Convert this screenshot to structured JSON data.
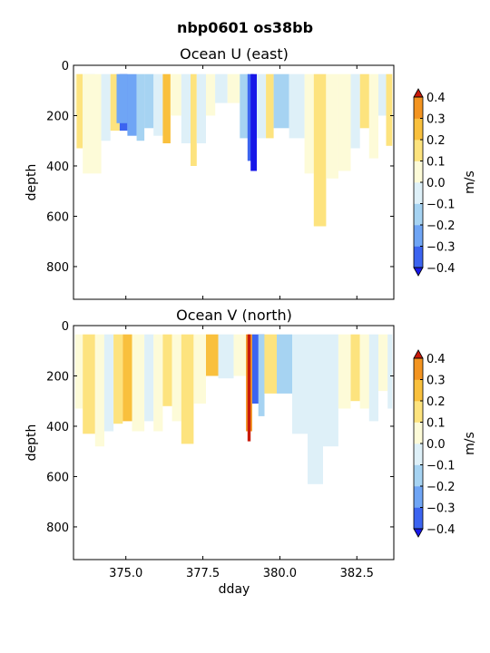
{
  "figure": {
    "title": "nbp0601 os38bb"
  },
  "colorbar": {
    "label": "m/s",
    "levels": [
      -0.4,
      -0.3,
      -0.2,
      -0.1,
      0.0,
      0.1,
      0.2,
      0.3,
      0.4
    ],
    "tick_labels": [
      "−0.4",
      "−0.3",
      "−0.2",
      "−0.1",
      "0.0",
      "0.1",
      "0.2",
      "0.3",
      "0.4"
    ],
    "colors": [
      "#1717e8",
      "#3c64f0",
      "#6fa5f5",
      "#a6d3f2",
      "#def0f8",
      "#fdfbd8",
      "#fde37e",
      "#f9c03d",
      "#f39420",
      "#e8621a",
      "#c91a0a"
    ]
  },
  "chart_data": [
    {
      "type": "heatmap",
      "title": "Ocean U (east)",
      "xlabel": "",
      "ylabel": "depth",
      "xlim": [
        373.3,
        383.7
      ],
      "ylim": [
        930,
        0
      ],
      "x_ticks": [
        375.0,
        377.5,
        380.0,
        382.5
      ],
      "x_tick_labels": [],
      "y_ticks": [
        0,
        200,
        400,
        600,
        800
      ],
      "y_tick_labels": [
        "0",
        "200",
        "400",
        "600",
        "800"
      ],
      "top_depth": 35,
      "segments": [
        {
          "x0": 373.35,
          "x1": 373.6,
          "ymax": 200,
          "v": 0.05
        },
        {
          "x0": 373.4,
          "x1": 373.6,
          "ymax": 330,
          "v": 0.15
        },
        {
          "x0": 373.6,
          "x1": 374.0,
          "ymax": 320,
          "v": -0.05
        },
        {
          "x0": 373.6,
          "x1": 374.2,
          "ymax": 430,
          "v": 0.05
        },
        {
          "x0": 374.2,
          "x1": 374.5,
          "ymax": 300,
          "v": -0.05
        },
        {
          "x0": 374.5,
          "x1": 374.8,
          "ymax": 260,
          "v": 0.15
        },
        {
          "x0": 374.8,
          "x1": 375.05,
          "ymax": 260,
          "v": -0.35
        },
        {
          "x0": 374.7,
          "x1": 375.05,
          "ymax": 230,
          "v": -0.3
        },
        {
          "x0": 375.05,
          "x1": 375.35,
          "ymax": 280,
          "v": -0.25
        },
        {
          "x0": 375.35,
          "x1": 375.6,
          "ymax": 300,
          "v": -0.15
        },
        {
          "x0": 375.6,
          "x1": 375.9,
          "ymax": 250,
          "v": -0.15
        },
        {
          "x0": 375.9,
          "x1": 376.2,
          "ymax": 280,
          "v": -0.05
        },
        {
          "x0": 376.2,
          "x1": 376.45,
          "ymax": 310,
          "v": 0.25
        },
        {
          "x0": 376.45,
          "x1": 376.8,
          "ymax": 200,
          "v": 0.05
        },
        {
          "x0": 376.8,
          "x1": 377.1,
          "ymax": 310,
          "v": -0.05
        },
        {
          "x0": 377.1,
          "x1": 377.3,
          "ymax": 400,
          "v": 0.15
        },
        {
          "x0": 377.3,
          "x1": 377.6,
          "ymax": 310,
          "v": -0.05
        },
        {
          "x0": 377.6,
          "x1": 377.9,
          "ymax": 200,
          "v": 0.05
        },
        {
          "x0": 377.9,
          "x1": 378.3,
          "ymax": 150,
          "v": -0.05
        },
        {
          "x0": 378.3,
          "x1": 378.7,
          "ymax": 150,
          "v": 0.05
        },
        {
          "x0": 378.7,
          "x1": 379.0,
          "ymax": 290,
          "v": -0.15
        },
        {
          "x0": 378.95,
          "x1": 379.15,
          "ymax": 380,
          "v": -0.35
        },
        {
          "x0": 379.05,
          "x1": 379.25,
          "ymax": 420,
          "v": -0.45
        },
        {
          "x0": 379.25,
          "x1": 379.55,
          "ymax": 290,
          "v": -0.05
        },
        {
          "x0": 379.55,
          "x1": 379.8,
          "ymax": 290,
          "v": 0.15
        },
        {
          "x0": 379.8,
          "x1": 380.3,
          "ymax": 250,
          "v": -0.15
        },
        {
          "x0": 380.3,
          "x1": 380.8,
          "ymax": 290,
          "v": -0.05
        },
        {
          "x0": 380.8,
          "x1": 381.1,
          "ymax": 430,
          "v": 0.05
        },
        {
          "x0": 381.1,
          "x1": 381.5,
          "ymax": 640,
          "v": 0.15
        },
        {
          "x0": 381.5,
          "x1": 381.9,
          "ymax": 450,
          "v": 0.05
        },
        {
          "x0": 381.9,
          "x1": 382.3,
          "ymax": 420,
          "v": 0.05
        },
        {
          "x0": 382.3,
          "x1": 382.6,
          "ymax": 330,
          "v": -0.05
        },
        {
          "x0": 382.6,
          "x1": 382.9,
          "ymax": 250,
          "v": 0.15
        },
        {
          "x0": 382.9,
          "x1": 383.2,
          "ymax": 370,
          "v": 0.05
        },
        {
          "x0": 383.2,
          "x1": 383.45,
          "ymax": 200,
          "v": -0.05
        },
        {
          "x0": 383.45,
          "x1": 383.65,
          "ymax": 320,
          "v": 0.15
        }
      ]
    },
    {
      "type": "heatmap",
      "title": "Ocean V (north)",
      "xlabel": "dday",
      "ylabel": "depth",
      "xlim": [
        373.3,
        383.7
      ],
      "ylim": [
        930,
        0
      ],
      "x_ticks": [
        375.0,
        377.5,
        380.0,
        382.5
      ],
      "x_tick_labels": [
        "375.0",
        "377.5",
        "380.0",
        "382.5"
      ],
      "y_ticks": [
        0,
        200,
        400,
        600,
        800
      ],
      "y_tick_labels": [
        "0",
        "200",
        "400",
        "600",
        "800"
      ],
      "top_depth": 35,
      "segments": [
        {
          "x0": 373.35,
          "x1": 373.6,
          "ymax": 330,
          "v": 0.05
        },
        {
          "x0": 373.6,
          "x1": 374.0,
          "ymax": 430,
          "v": 0.15
        },
        {
          "x0": 374.0,
          "x1": 374.3,
          "ymax": 480,
          "v": 0.05
        },
        {
          "x0": 374.3,
          "x1": 374.6,
          "ymax": 420,
          "v": -0.05
        },
        {
          "x0": 374.6,
          "x1": 374.9,
          "ymax": 390,
          "v": 0.15
        },
        {
          "x0": 374.9,
          "x1": 375.2,
          "ymax": 380,
          "v": 0.25
        },
        {
          "x0": 375.2,
          "x1": 375.6,
          "ymax": 420,
          "v": 0.05
        },
        {
          "x0": 375.6,
          "x1": 375.9,
          "ymax": 380,
          "v": -0.05
        },
        {
          "x0": 375.9,
          "x1": 376.2,
          "ymax": 420,
          "v": 0.05
        },
        {
          "x0": 376.2,
          "x1": 376.5,
          "ymax": 320,
          "v": 0.15
        },
        {
          "x0": 376.5,
          "x1": 376.8,
          "ymax": 380,
          "v": 0.05
        },
        {
          "x0": 376.8,
          "x1": 377.2,
          "ymax": 470,
          "v": 0.15
        },
        {
          "x0": 377.2,
          "x1": 377.6,
          "ymax": 310,
          "v": 0.05
        },
        {
          "x0": 377.6,
          "x1": 378.0,
          "ymax": 200,
          "v": 0.25
        },
        {
          "x0": 378.0,
          "x1": 378.5,
          "ymax": 210,
          "v": -0.05
        },
        {
          "x0": 378.5,
          "x1": 378.9,
          "ymax": 200,
          "v": 0.05
        },
        {
          "x0": 378.9,
          "x1": 379.1,
          "ymax": 420,
          "v": 0.35
        },
        {
          "x0": 378.95,
          "x1": 379.05,
          "ymax": 460,
          "v": 0.45
        },
        {
          "x0": 379.1,
          "x1": 379.5,
          "ymax": 310,
          "v": -0.35
        },
        {
          "x0": 379.3,
          "x1": 379.5,
          "ymax": 360,
          "v": -0.15
        },
        {
          "x0": 379.5,
          "x1": 379.9,
          "ymax": 270,
          "v": 0.15
        },
        {
          "x0": 379.9,
          "x1": 380.4,
          "ymax": 270,
          "v": -0.15
        },
        {
          "x0": 380.4,
          "x1": 380.9,
          "ymax": 430,
          "v": -0.05
        },
        {
          "x0": 380.9,
          "x1": 381.4,
          "ymax": 630,
          "v": -0.05
        },
        {
          "x0": 381.4,
          "x1": 381.9,
          "ymax": 480,
          "v": -0.05
        },
        {
          "x0": 381.9,
          "x1": 382.3,
          "ymax": 330,
          "v": 0.05
        },
        {
          "x0": 382.3,
          "x1": 382.6,
          "ymax": 300,
          "v": 0.15
        },
        {
          "x0": 382.6,
          "x1": 382.9,
          "ymax": 330,
          "v": 0.05
        },
        {
          "x0": 382.9,
          "x1": 383.2,
          "ymax": 380,
          "v": -0.05
        },
        {
          "x0": 383.2,
          "x1": 383.5,
          "ymax": 260,
          "v": 0.05
        },
        {
          "x0": 383.5,
          "x1": 383.65,
          "ymax": 330,
          "v": -0.05
        }
      ]
    }
  ]
}
